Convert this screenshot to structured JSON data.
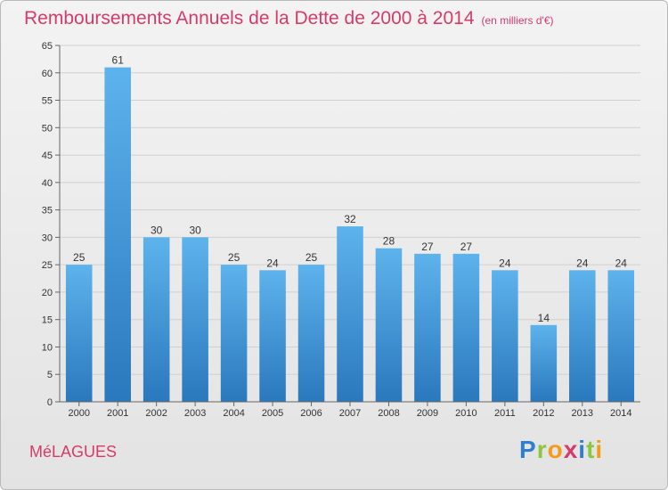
{
  "header": {
    "title": "Remboursements Annuels de la Dette de 2000 à 2014",
    "subtitle": "(en milliers d'€)"
  },
  "commune": "MéLAGUES",
  "logo": {
    "letters": [
      {
        "ch": "P",
        "color": "#2f7fd1"
      },
      {
        "ch": "r",
        "color": "#8cc63f"
      },
      {
        "ch": "o",
        "color": "#f29b1d"
      },
      {
        "ch": "x",
        "color": "#d63b6b"
      },
      {
        "ch": "i",
        "color": "#2f7fd1"
      },
      {
        "ch": "t",
        "color": "#8cc63f"
      },
      {
        "ch": "i",
        "color": "#f29b1d"
      }
    ]
  },
  "colors": {
    "bar_top": "#5db3ec",
    "bar_bottom": "#2a78bd",
    "accent": "#d63b6b"
  },
  "chart_data": {
    "type": "bar",
    "title": "Remboursements Annuels de la Dette de 2000 à 2014",
    "categories": [
      "2000",
      "2001",
      "2002",
      "2003",
      "2004",
      "2005",
      "2006",
      "2007",
      "2008",
      "2009",
      "2010",
      "2011",
      "2012",
      "2013",
      "2014"
    ],
    "values": [
      25,
      61,
      30,
      30,
      25,
      24,
      25,
      32,
      28,
      27,
      27,
      24,
      14,
      24,
      24
    ],
    "ylim": [
      0,
      65
    ],
    "yticks": [
      0,
      5,
      10,
      15,
      20,
      25,
      30,
      35,
      40,
      45,
      50,
      55,
      60,
      65
    ],
    "grid": true
  }
}
